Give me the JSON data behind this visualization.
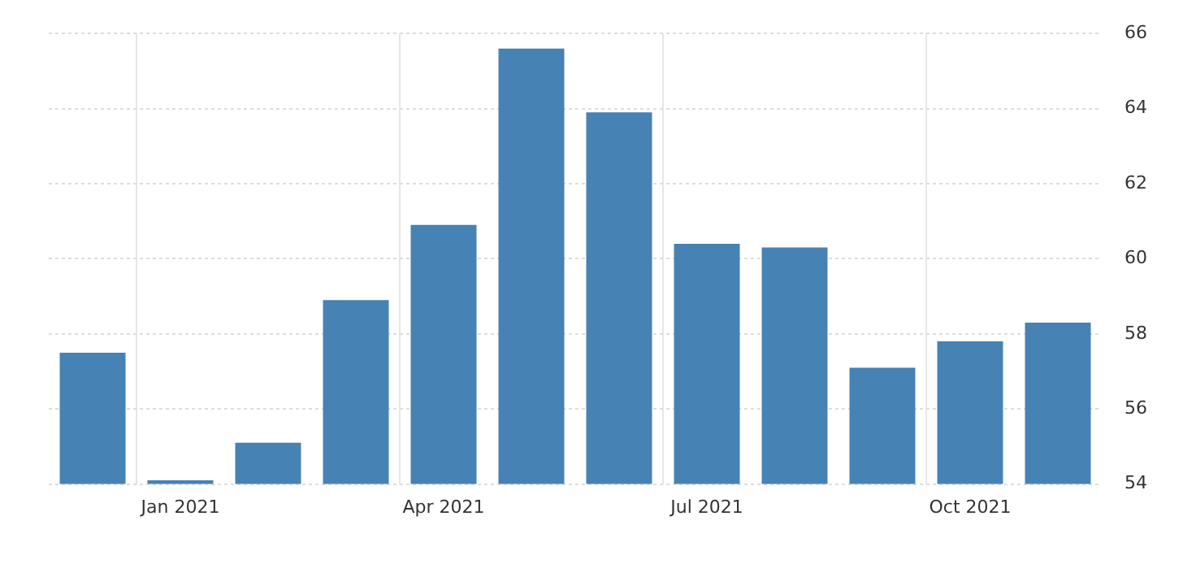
{
  "chart_data": {
    "type": "bar",
    "categories": [
      null,
      "Jan 2021",
      null,
      null,
      "Apr 2021",
      null,
      null,
      "Jul 2021",
      null,
      null,
      "Oct 2021",
      null
    ],
    "values": [
      57.5,
      54.1,
      55.1,
      58.9,
      60.9,
      65.6,
      63.9,
      60.4,
      60.3,
      57.1,
      57.8,
      58.3
    ],
    "color": "#4682b4",
    "ylim": [
      54,
      66
    ],
    "yticks": [
      54,
      56,
      58,
      60,
      62,
      64,
      66
    ],
    "grid": true
  }
}
